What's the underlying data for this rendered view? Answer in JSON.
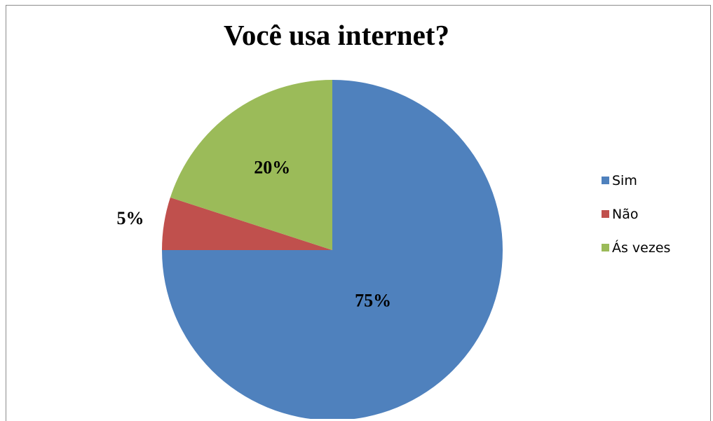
{
  "chart_data": {
    "type": "pie",
    "title": "Você usa internet?",
    "categories": [
      "Sim",
      "Não",
      "Ás vezes"
    ],
    "values": [
      75,
      5,
      20
    ],
    "data_labels": [
      "75%",
      "5%",
      "20%"
    ],
    "colors": [
      "#4F81BD",
      "#C0504D",
      "#9BBB59"
    ],
    "start_angle_deg": 0,
    "direction": "clockwise",
    "legend_position": "right"
  }
}
